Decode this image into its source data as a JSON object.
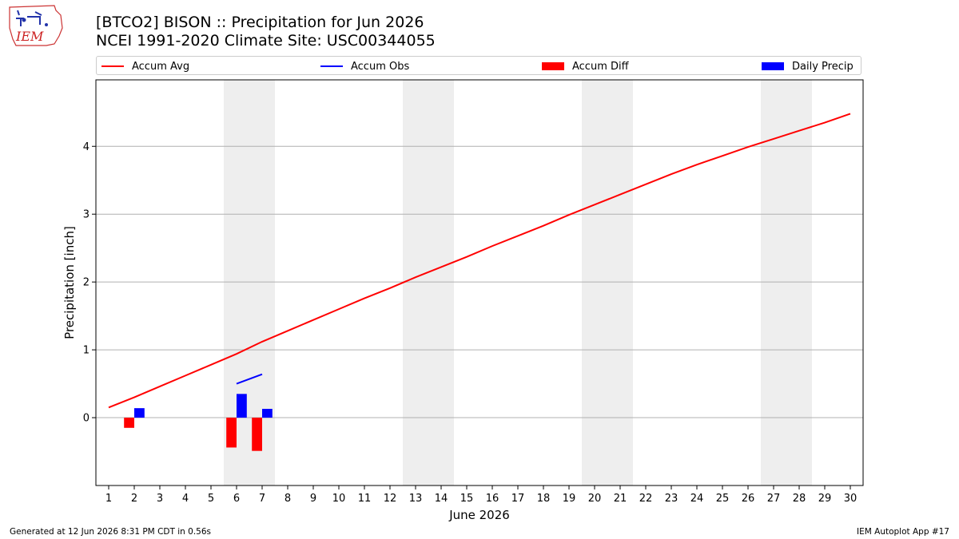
{
  "logo": {
    "text": "IEM"
  },
  "header": {
    "title_line1": "[BTCO2] BISON :: Precipitation for Jun 2026",
    "title_line2": "NCEI 1991-2020 Climate Site: USC00344055"
  },
  "footer": {
    "generated": "Generated at 12 Jun 2026 8:31 PM CDT in 0.56s",
    "app": "IEM Autoplot App #17"
  },
  "colors": {
    "accum_avg": "#ff0000",
    "accum_obs": "#0000ff",
    "accum_diff": "#ff0000",
    "daily_precip": "#0000ff",
    "weekend_shade": "#eeeeee",
    "grid": "#b0b0b0"
  },
  "chart_data": {
    "type": "line",
    "xlabel": "June 2026",
    "ylabel": "Precipitation [inch]",
    "xlim": [
      0.5,
      30.5
    ],
    "ylim": [
      -1.0,
      4.98
    ],
    "xticks": [
      1,
      2,
      3,
      4,
      5,
      6,
      7,
      8,
      9,
      10,
      11,
      12,
      13,
      14,
      15,
      16,
      17,
      18,
      19,
      20,
      21,
      22,
      23,
      24,
      25,
      26,
      27,
      28,
      29,
      30
    ],
    "yticks": [
      0,
      1,
      2,
      3,
      4
    ],
    "grid": "horizontal",
    "legend": "top",
    "weekend_spans": [
      [
        5.5,
        7.5
      ],
      [
        12.5,
        14.5
      ],
      [
        19.5,
        21.5
      ],
      [
        26.5,
        28.5
      ]
    ],
    "series": [
      {
        "name": "Accum Avg",
        "kind": "line",
        "x": [
          1,
          2,
          3,
          4,
          5,
          6,
          7,
          8,
          9,
          10,
          11,
          12,
          13,
          14,
          15,
          16,
          17,
          18,
          19,
          20,
          21,
          22,
          23,
          24,
          25,
          26,
          27,
          28,
          29,
          30
        ],
        "values": [
          0.15,
          0.3,
          0.46,
          0.62,
          0.78,
          0.94,
          1.12,
          1.28,
          1.44,
          1.6,
          1.76,
          1.91,
          2.07,
          2.22,
          2.37,
          2.53,
          2.68,
          2.83,
          2.99,
          3.14,
          3.29,
          3.44,
          3.59,
          3.73,
          3.86,
          3.99,
          4.11,
          4.23,
          4.35,
          4.48
        ]
      },
      {
        "name": "Accum Obs",
        "kind": "line",
        "x": [
          6,
          7
        ],
        "values": [
          0.5,
          0.64
        ]
      },
      {
        "name": "Accum Diff",
        "kind": "bar",
        "x": [
          2,
          6,
          7
        ],
        "values": [
          -0.15,
          -0.44,
          -0.49
        ]
      },
      {
        "name": "Daily Precip",
        "kind": "bar",
        "x": [
          2,
          6,
          7
        ],
        "values": [
          0.14,
          0.35,
          0.13
        ]
      }
    ]
  }
}
